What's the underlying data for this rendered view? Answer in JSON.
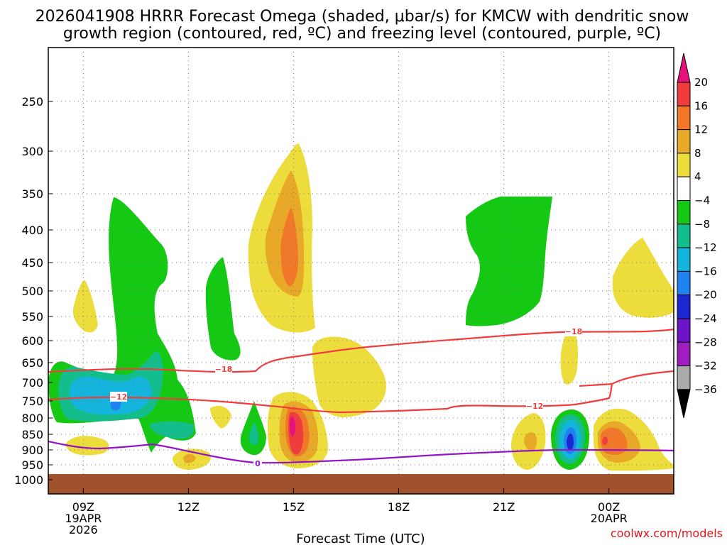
{
  "chart_data": {
    "type": "contour",
    "title_line1": "2026041908 HRRR Forecast Omega (shaded, μbar/s) for KMCW with dendritic snow",
    "title_line2": "growth region (contoured, red, ºC) and freezing level (contoured, purple, ºC)",
    "xlabel": "Forecast Time (UTC)",
    "credit": "coolwx.com/models",
    "x_hours": [
      8,
      25.85
    ],
    "x_ticks": [
      {
        "hour": 9,
        "lines": [
          "09Z",
          "19APR",
          "2026"
        ]
      },
      {
        "hour": 12,
        "lines": [
          "12Z"
        ]
      },
      {
        "hour": 15,
        "lines": [
          "15Z"
        ]
      },
      {
        "hour": 18,
        "lines": [
          "18Z"
        ]
      },
      {
        "hour": 21,
        "lines": [
          "21Z"
        ]
      },
      {
        "hour": 24,
        "lines": [
          "00Z",
          "20APR"
        ]
      }
    ],
    "y_levels": [
      "250",
      "300",
      "350",
      "400",
      "450",
      "500",
      "550",
      "600",
      "650",
      "700",
      "750",
      "800",
      "850",
      "900",
      "950",
      "1000"
    ],
    "ground_color": "#a0522d",
    "colorbar": {
      "levels": [
        "20",
        "16",
        "12",
        "8",
        "4",
        "−4",
        "−8",
        "−12",
        "−16",
        "−20",
        "−24",
        "−28",
        "−32",
        "−36"
      ],
      "colors": [
        "#e8107e",
        "#f03c3c",
        "#f07828",
        "#e8a828",
        "#ecdc3c",
        "#ffffff",
        "#14c814",
        "#14be8c",
        "#14b4dc",
        "#1e82f0",
        "#1e28d2",
        "#6e14c8",
        "#a01ebe",
        "#aaaaaa",
        "#000000"
      ]
    },
    "contours": [
      {
        "name": "dgz-minus-18",
        "color": "#f03c3c",
        "label": "−18"
      },
      {
        "name": "dgz-minus-12",
        "color": "#f03c3c",
        "label": "−12"
      },
      {
        "name": "freezing-level",
        "color": "#9614c8",
        "label": "0"
      }
    ]
  }
}
